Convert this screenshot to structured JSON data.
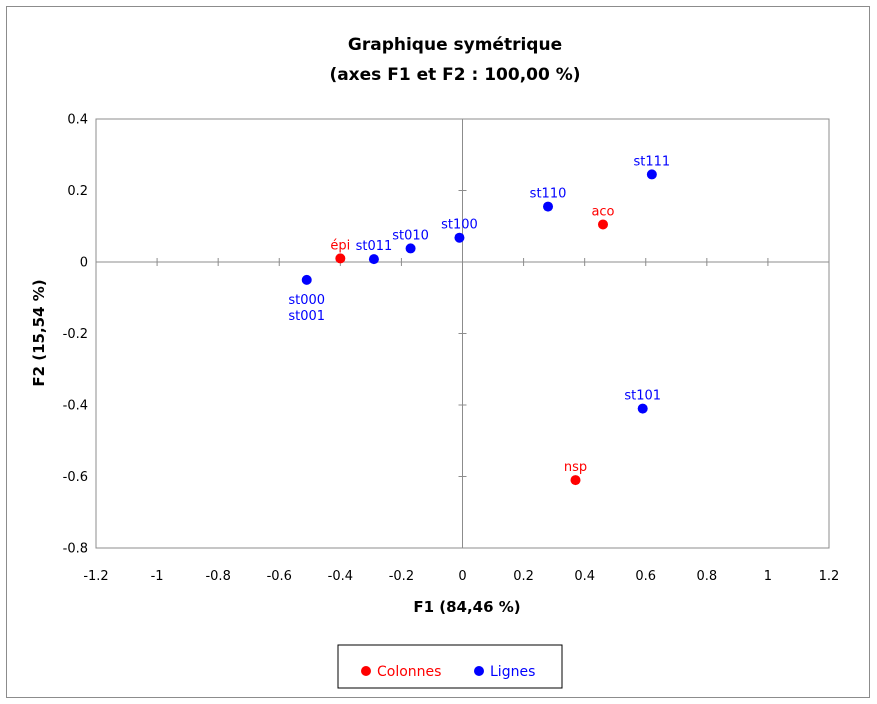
{
  "chart_data": {
    "type": "scatter",
    "title": "Graphique symétrique",
    "subtitle": "(axes F1 et F2 : 100,00 %)",
    "xlabel": "F1 (84,46 %)",
    "ylabel": "F2 (15,54 %)",
    "xlim": [
      -1.2,
      1.2
    ],
    "ylim": [
      -0.8,
      0.4
    ],
    "xticks": [
      "-1.2",
      "-1",
      "-0.8",
      "-0.6",
      "-0.4",
      "-0.2",
      "0",
      "0.2",
      "0.4",
      "0.6",
      "0.8",
      "1",
      "1.2"
    ],
    "yticks": [
      "0.4",
      "0.2",
      "0",
      "-0.2",
      "-0.4",
      "-0.6",
      "-0.8"
    ],
    "grid": false,
    "legend_position": "bottom",
    "series": [
      {
        "name": "Colonnes",
        "color": "#ff0000",
        "points": [
          {
            "label": "épi",
            "x": -0.4,
            "y": 0.01
          },
          {
            "label": "aco",
            "x": 0.46,
            "y": 0.105
          },
          {
            "label": "nsp",
            "x": 0.37,
            "y": -0.61
          }
        ]
      },
      {
        "name": "Lignes",
        "color": "#0000ff",
        "points": [
          {
            "label": "st000\nst001",
            "x": -0.51,
            "y": -0.05
          },
          {
            "label": "st011",
            "x": -0.29,
            "y": 0.008
          },
          {
            "label": "st010",
            "x": -0.17,
            "y": 0.038
          },
          {
            "label": "st100",
            "x": -0.01,
            "y": 0.068
          },
          {
            "label": "st110",
            "x": 0.28,
            "y": 0.155
          },
          {
            "label": "st111",
            "x": 0.62,
            "y": 0.245
          },
          {
            "label": "st101",
            "x": 0.59,
            "y": -0.41
          }
        ]
      }
    ]
  }
}
